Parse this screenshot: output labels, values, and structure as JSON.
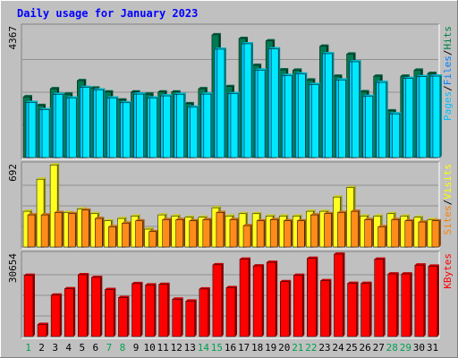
{
  "chart_data": [
    {
      "type": "bar",
      "title": "Daily usage for January 2023",
      "y_max_label": "4367",
      "legend": [
        {
          "name": "Pages",
          "color": "#00c0ff"
        },
        {
          "name": "Files",
          "color": "#0080ff"
        },
        {
          "name": "Hits",
          "color": "#008040"
        }
      ],
      "legend_separator": "/",
      "categories": [
        "1",
        "2",
        "3",
        "4",
        "5",
        "6",
        "7",
        "8",
        "9",
        "10",
        "11",
        "12",
        "13",
        "14",
        "15",
        "16",
        "17",
        "18",
        "19",
        "20",
        "21",
        "22",
        "23",
        "24",
        "25",
        "26",
        "27",
        "28",
        "29",
        "30",
        "31"
      ],
      "series": [
        {
          "name": "Hits",
          "color": "#007a50",
          "values": [
            2030,
            1740,
            2300,
            2120,
            2570,
            2320,
            2190,
            1920,
            2190,
            2120,
            2190,
            2190,
            1800,
            2300,
            4100,
            2370,
            3980,
            3080,
            3900,
            2930,
            2920,
            2590,
            3720,
            2720,
            3460,
            2200,
            2720,
            1560,
            2720,
            2920,
            2810
          ]
        },
        {
          "name": "Files",
          "color": "#00c8ff",
          "values": [
            1840,
            1600,
            2110,
            1990,
            2340,
            2260,
            1990,
            1830,
            2120,
            1990,
            2060,
            2110,
            1680,
            2120,
            3620,
            2130,
            3800,
            2920,
            3630,
            2740,
            2790,
            2440,
            3470,
            2590,
            3200,
            2040,
            2510,
            1460,
            2640,
            2700,
            2720
          ]
        },
        {
          "name": "Pages",
          "color": "#00e8ff",
          "values": [
            1840,
            1600,
            2110,
            1990,
            2340,
            2260,
            1990,
            1830,
            2120,
            1990,
            2060,
            2110,
            1680,
            2120,
            3620,
            2130,
            3800,
            2920,
            3630,
            2740,
            2790,
            2440,
            3470,
            2590,
            3200,
            2040,
            2510,
            1460,
            2640,
            2700,
            2720
          ]
        }
      ],
      "ylim": [
        0,
        4367
      ]
    },
    {
      "type": "bar",
      "y_max_label": "692",
      "legend": [
        {
          "name": "Sites",
          "color": "#ff8000"
        },
        {
          "name": "Visits",
          "color": "#ffff00"
        }
      ],
      "legend_separator": "/",
      "categories": [
        "1",
        "2",
        "3",
        "4",
        "5",
        "6",
        "7",
        "8",
        "9",
        "10",
        "11",
        "12",
        "13",
        "14",
        "15",
        "16",
        "17",
        "18",
        "19",
        "20",
        "21",
        "22",
        "23",
        "24",
        "25",
        "26",
        "27",
        "28",
        "29",
        "30",
        "31"
      ],
      "series": [
        {
          "name": "Visits",
          "color": "#ffff20",
          "values": [
            300,
            570,
            690,
            290,
            320,
            280,
            220,
            240,
            260,
            150,
            270,
            260,
            250,
            250,
            330,
            260,
            280,
            280,
            260,
            260,
            260,
            300,
            300,
            420,
            500,
            260,
            260,
            280,
            260,
            250,
            230
          ]
        },
        {
          "name": "Sites",
          "color": "#ff8c1a",
          "values": [
            270,
            270,
            290,
            280,
            310,
            240,
            170,
            200,
            220,
            130,
            230,
            230,
            220,
            230,
            290,
            230,
            180,
            220,
            230,
            220,
            220,
            270,
            280,
            290,
            300,
            230,
            170,
            230,
            220,
            210,
            220
          ]
        }
      ],
      "ylim": [
        0,
        692
      ]
    },
    {
      "type": "bar",
      "y_max_label": "30654",
      "legend": [
        {
          "name": "KBytes",
          "color": "#ff0000"
        }
      ],
      "legend_separator": "",
      "categories": [
        "1",
        "2",
        "3",
        "4",
        "5",
        "6",
        "7",
        "8",
        "9",
        "10",
        "11",
        "12",
        "13",
        "14",
        "15",
        "16",
        "17",
        "18",
        "19",
        "20",
        "21",
        "22",
        "23",
        "24",
        "25",
        "26",
        "27",
        "28",
        "29",
        "30",
        "31"
      ],
      "series": [
        {
          "name": "KBytes",
          "color": "#ff0000",
          "values": [
            22800,
            4500,
            15400,
            17800,
            23000,
            22000,
            17500,
            14500,
            19700,
            19200,
            19400,
            13900,
            13200,
            17700,
            26700,
            18200,
            28800,
            26300,
            27600,
            20400,
            22800,
            29100,
            20800,
            31000,
            19800,
            19800,
            28800,
            23300,
            23300,
            26600,
            26200
          ]
        }
      ],
      "ylim": [
        0,
        30654
      ]
    }
  ],
  "weekend_days": [
    "1",
    "7",
    "8",
    "14",
    "15",
    "21",
    "22",
    "28",
    "29"
  ],
  "colors": {
    "background": "#c0c0c0",
    "plot_bg": "#c0c0c0",
    "grid": "#808080",
    "weekday_label": "#000000",
    "weekend_label": "#00a050"
  }
}
